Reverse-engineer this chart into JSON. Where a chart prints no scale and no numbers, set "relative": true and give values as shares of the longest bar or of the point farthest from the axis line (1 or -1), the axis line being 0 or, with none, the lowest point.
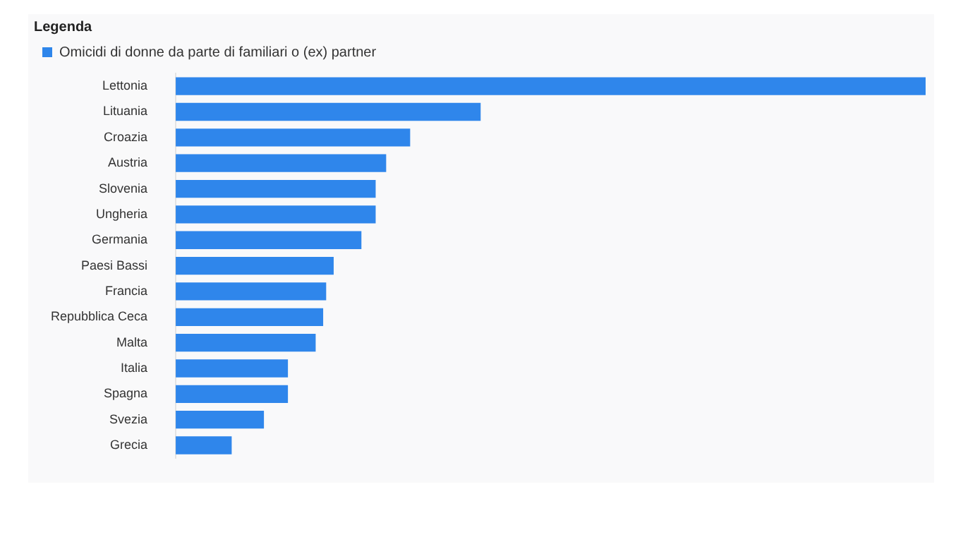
{
  "chart_data": {
    "type": "bar",
    "orientation": "horizontal",
    "relative": true,
    "legend": "top left",
    "legend_title": "Legenda",
    "categories": [
      "Lettonia",
      "Lituania",
      "Croazia",
      "Austria",
      "Slovenia",
      "Ungheria",
      "Germania",
      "Paesi Bassi",
      "Francia",
      "Repubblica Ceca",
      "Malta",
      "Italia",
      "Spagna",
      "Svezia",
      "Grecia"
    ],
    "series": [
      {
        "name": "Omicidi di donne da parte di familiari o (ex) partner",
        "color": "#2f86eb",
        "values": [
          1,
          0.406,
          0.312,
          0.28,
          0.266,
          0.266,
          0.247,
          0.21,
          0.2,
          0.196,
          0.186,
          0.149,
          0.149,
          0.117,
          0.074
        ]
      }
    ]
  }
}
